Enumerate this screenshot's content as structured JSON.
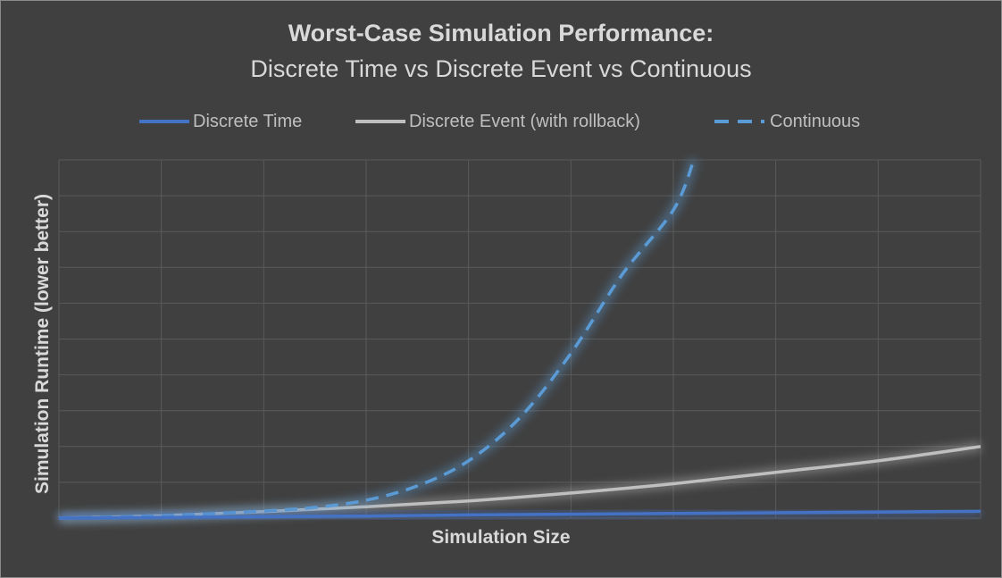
{
  "chart_data": {
    "type": "line",
    "title": "Worst-Case Simulation Performance:",
    "subtitle": "Discrete Time vs Discrete Event vs Continuous",
    "xlabel": "Simulation Size",
    "ylabel": "Simulation Runtime (lower better)",
    "xlim": [
      0,
      9
    ],
    "ylim": [
      0,
      10
    ],
    "grid": true,
    "tick_labels": false,
    "legend_position": "top",
    "x": [
      0,
      0.5,
      1,
      1.5,
      2,
      2.5,
      3,
      3.5,
      4,
      4.5,
      5,
      5.5,
      6,
      6.5,
      7,
      7.5,
      8,
      8.5,
      9
    ],
    "series": [
      {
        "name": "Discrete Time",
        "color": "#4472c4",
        "style": "solid",
        "x": [
          0,
          1,
          2,
          3,
          4,
          5,
          6,
          7,
          8,
          9
        ],
        "values": [
          0.0,
          0.02,
          0.04,
          0.06,
          0.09,
          0.11,
          0.13,
          0.15,
          0.17,
          0.19
        ]
      },
      {
        "name": "Discrete Event (with rollback)",
        "color": "#bfbfbf",
        "style": "solid",
        "x": [
          0,
          1,
          2,
          3,
          4,
          5,
          6,
          7,
          8,
          9
        ],
        "values": [
          0.0,
          0.07,
          0.18,
          0.32,
          0.48,
          0.7,
          0.96,
          1.28,
          1.6,
          2.0
        ]
      },
      {
        "name": "Continuous",
        "color": "#5b9bd5",
        "style": "dashed",
        "x": [
          0,
          1,
          2,
          2.5,
          3,
          3.5,
          4,
          4.5,
          5,
          5.5,
          6,
          6.2
        ],
        "values": [
          0.0,
          0.07,
          0.2,
          0.3,
          0.5,
          0.9,
          1.6,
          2.8,
          4.6,
          6.8,
          8.6,
          10
        ]
      }
    ]
  }
}
